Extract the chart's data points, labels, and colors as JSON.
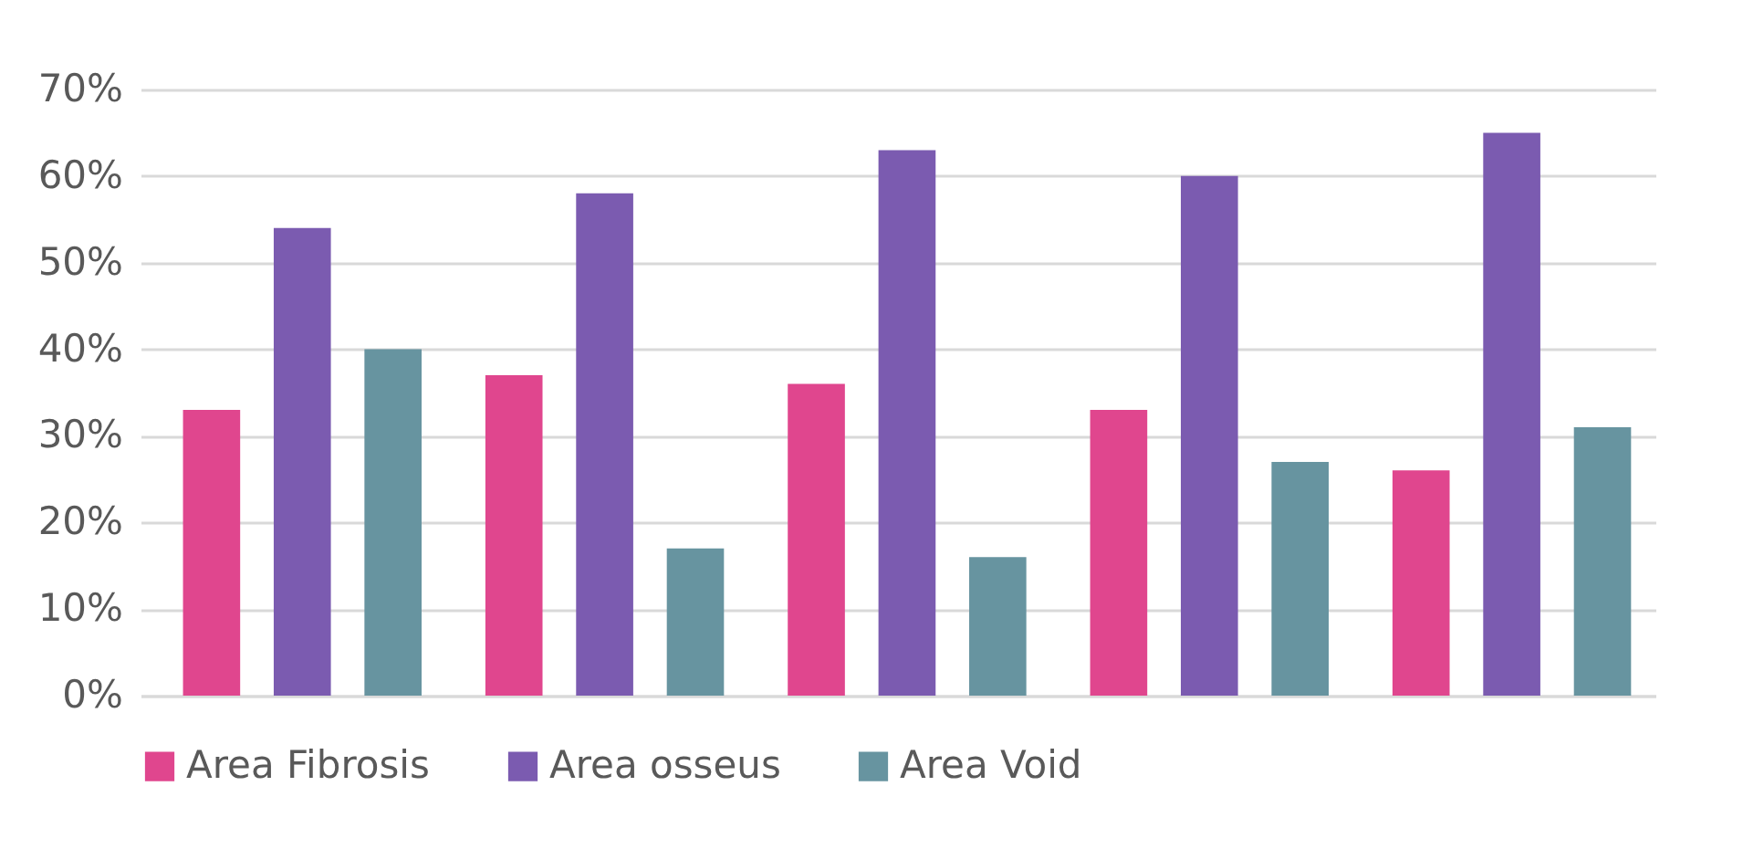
{
  "chart_data": {
    "type": "bar",
    "categories": [
      null,
      null,
      null,
      null,
      null
    ],
    "series": [
      {
        "name": "Area Fibrosis",
        "color": "#e0468e",
        "values": [
          33,
          37,
          36,
          33,
          26
        ]
      },
      {
        "name": "Area osseus",
        "color": "#7b5bb0",
        "values": [
          54,
          58,
          63,
          60,
          65
        ]
      },
      {
        "name": "Area Void",
        "color": "#6794a0",
        "values": [
          40,
          17,
          16,
          27,
          31
        ]
      }
    ],
    "ylim": [
      0,
      70
    ],
    "yticks": [
      {
        "value": 0,
        "label": "0%"
      },
      {
        "value": 10,
        "label": "10%"
      },
      {
        "value": 20,
        "label": "20%"
      },
      {
        "value": 30,
        "label": "30%"
      },
      {
        "value": 40,
        "label": "40%"
      },
      {
        "value": 50,
        "label": "50%"
      },
      {
        "value": 60,
        "label": "60%"
      },
      {
        "value": 70,
        "label": "70%"
      }
    ],
    "grid": "y",
    "legend": "bottom",
    "tick_labels": "y"
  }
}
